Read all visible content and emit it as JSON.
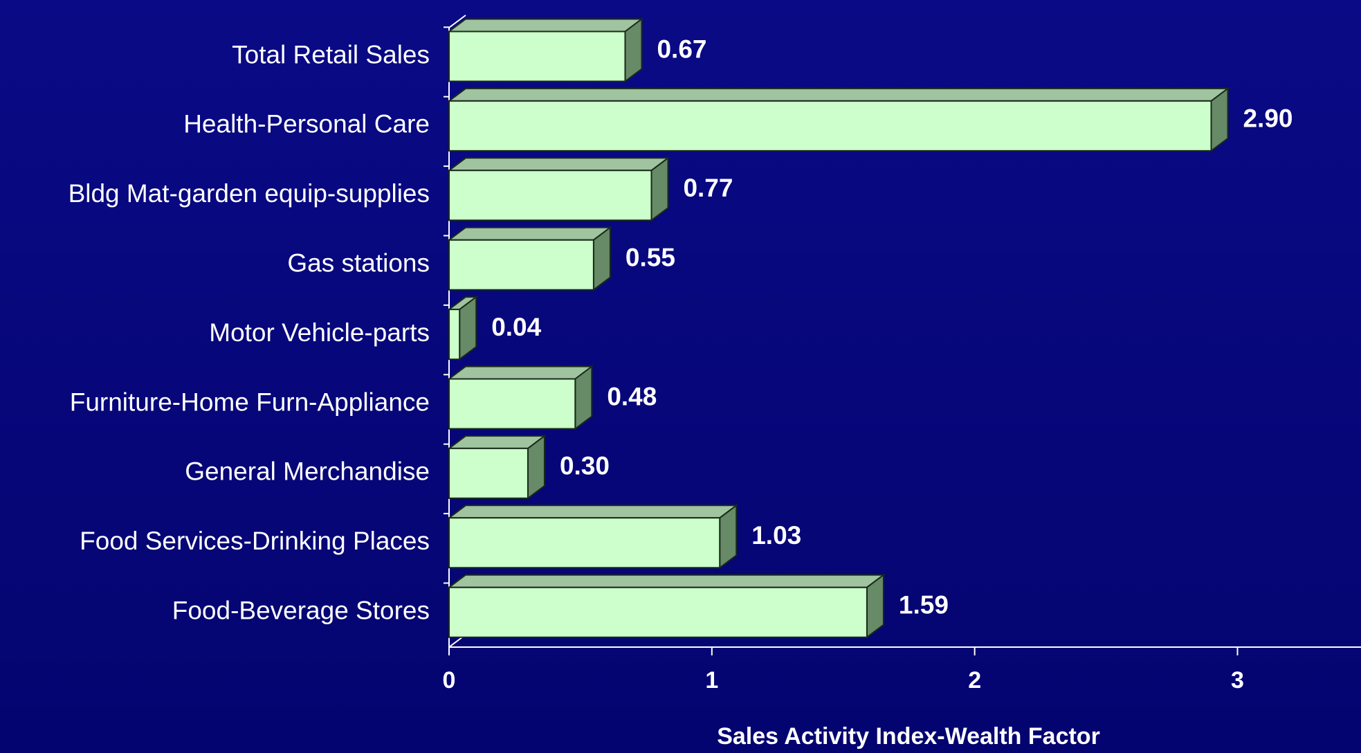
{
  "chart_data": {
    "type": "bar3d_horizontal",
    "xlabel": "Sales Activity Index-Wealth Factor",
    "categories": [
      "Total Retail Sales",
      "Health-Personal Care",
      "Bldg Mat-garden equip-supplies",
      "Gas stations",
      "Motor Vehicle-parts",
      "Furniture-Home Furn-Appliance",
      "General Merchandise",
      "Food Services-Drinking Places",
      "Food-Beverage Stores"
    ],
    "values": [
      0.67,
      2.9,
      0.77,
      0.55,
      0.04,
      0.48,
      0.3,
      1.03,
      1.59
    ],
    "value_labels": [
      "0.67",
      "2.90",
      "0.77",
      "0.55",
      "0.04",
      "0.48",
      "0.30",
      "1.03",
      "1.59"
    ],
    "color": "#ccffcc",
    "xlim": [
      0,
      3.47
    ],
    "xticks": [
      0,
      1,
      2,
      3
    ]
  }
}
